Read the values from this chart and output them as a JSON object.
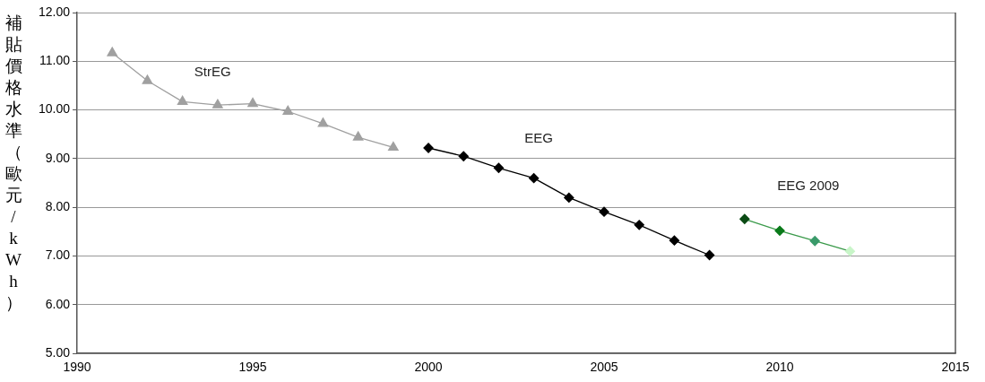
{
  "chart_data": {
    "type": "line",
    "ylabel": "補貼價格水準（歐元/kWh）",
    "xlim": [
      1990,
      2015
    ],
    "xticks": [
      1990,
      1995,
      2000,
      2005,
      2010,
      2015
    ],
    "ylim": [
      5,
      12
    ],
    "yticks": [
      {
        "value": 5,
        "label": "5.00"
      },
      {
        "value": 6,
        "label": "6.00"
      },
      {
        "value": 7,
        "label": "7.00"
      },
      {
        "value": 8,
        "label": "8.00"
      },
      {
        "value": 9,
        "label": "9.00"
      },
      {
        "value": 10,
        "label": "10.00"
      },
      {
        "value": 11,
        "label": "11.00"
      },
      {
        "value": 12,
        "label": "12.00"
      }
    ],
    "grid": "y",
    "legend": false,
    "line_style": "solid",
    "series": [
      {
        "name": "StrEG",
        "color": "#a0a0a0",
        "marker": "triangle",
        "x": [
          1991,
          1992,
          1993,
          1994,
          1995,
          1996,
          1997,
          1998,
          1999
        ],
        "values": [
          11.17,
          10.6,
          10.17,
          10.1,
          10.13,
          9.97,
          9.72,
          9.44,
          9.23
        ]
      },
      {
        "name": "EEG",
        "color": "#000000",
        "marker": "diamond",
        "x": [
          2000,
          2001,
          2002,
          2003,
          2004,
          2005,
          2006,
          2007,
          2008
        ],
        "values": [
          9.22,
          9.05,
          8.81,
          8.6,
          8.2,
          7.91,
          7.64,
          7.32,
          7.02
        ]
      },
      {
        "name": "EEG 2009",
        "color": "#3a9a4a",
        "colors": [
          "#0b4a14",
          "#0a7a1a",
          "#3a9a6a",
          "#c8f5c8"
        ],
        "marker": "diamond",
        "x": [
          2009,
          2010,
          2011,
          2012
        ],
        "values": [
          7.76,
          7.52,
          7.31,
          7.1
        ]
      }
    ]
  }
}
